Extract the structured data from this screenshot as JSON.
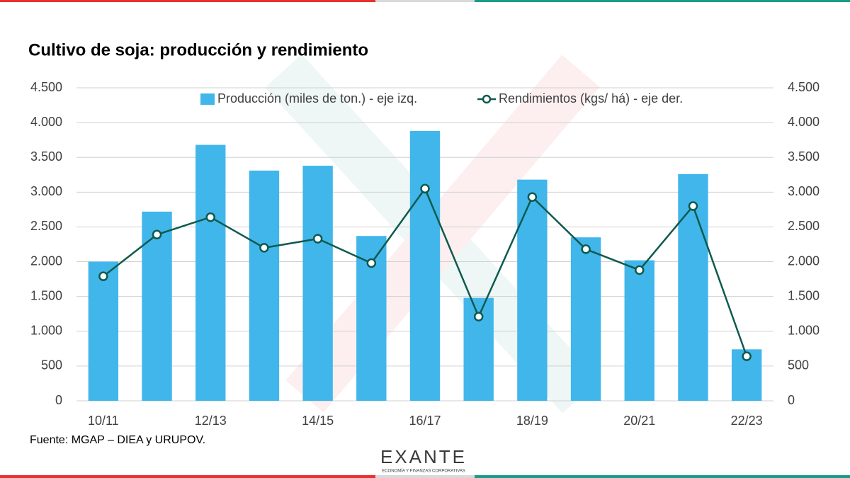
{
  "chart_data": {
    "type": "bar",
    "title": "Cultivo de soja: producción y rendimiento",
    "source": "Fuente: MGAP – DIEA y URUPOV.",
    "logo": {
      "name": "EXANTE",
      "tagline": "ECONOMÍA Y FINANZAS CORPORATIVAS"
    },
    "categories": [
      "10/11",
      null,
      "12/13",
      null,
      "14/15",
      null,
      "16/17",
      null,
      "18/19",
      null,
      "20/21",
      null,
      "22/23"
    ],
    "series": [
      {
        "name": "Producción (miles de ton.) - eje izq.",
        "type": "bar",
        "color": "#41b6ea",
        "values": [
          2000,
          2720,
          3680,
          3310,
          3380,
          2370,
          3880,
          1480,
          3180,
          2350,
          2020,
          3260,
          740
        ]
      },
      {
        "name": "Rendimientos (kgs/ há) - eje der.",
        "type": "line",
        "axis": "y2",
        "color": "#0e5a4f",
        "values": [
          1790,
          2390,
          2640,
          2200,
          2330,
          1980,
          3050,
          1210,
          2930,
          2180,
          1880,
          2800,
          640
        ]
      }
    ],
    "ylim": [
      0,
      4500
    ],
    "yticks": [
      0,
      500,
      {
        "value": 1000,
        "label": "1.000"
      },
      {
        "value": 1500,
        "label": "1.500"
      },
      {
        "value": 2000,
        "label": "2.000"
      },
      {
        "value": 2500,
        "label": "2.500"
      },
      {
        "value": 3000,
        "label": "3.000"
      },
      {
        "value": 3500,
        "label": "3.500"
      },
      {
        "value": 4000,
        "label": "4.000"
      },
      {
        "value": 4500,
        "label": "4.500"
      }
    ],
    "y2lim": [
      0,
      4500
    ],
    "y2ticks": [
      0,
      500,
      {
        "value": 1000,
        "label": "1.000"
      },
      {
        "value": 1500,
        "label": "1.500"
      },
      {
        "value": 2000,
        "label": "2.000"
      },
      {
        "value": 2500,
        "label": "2.500"
      },
      {
        "value": 3000,
        "label": "3.000"
      },
      {
        "value": 3500,
        "label": "3.500"
      },
      {
        "value": 4000,
        "label": "4.000"
      },
      {
        "value": 4500,
        "label": "4.500"
      }
    ],
    "grid": true,
    "legend": "top"
  }
}
